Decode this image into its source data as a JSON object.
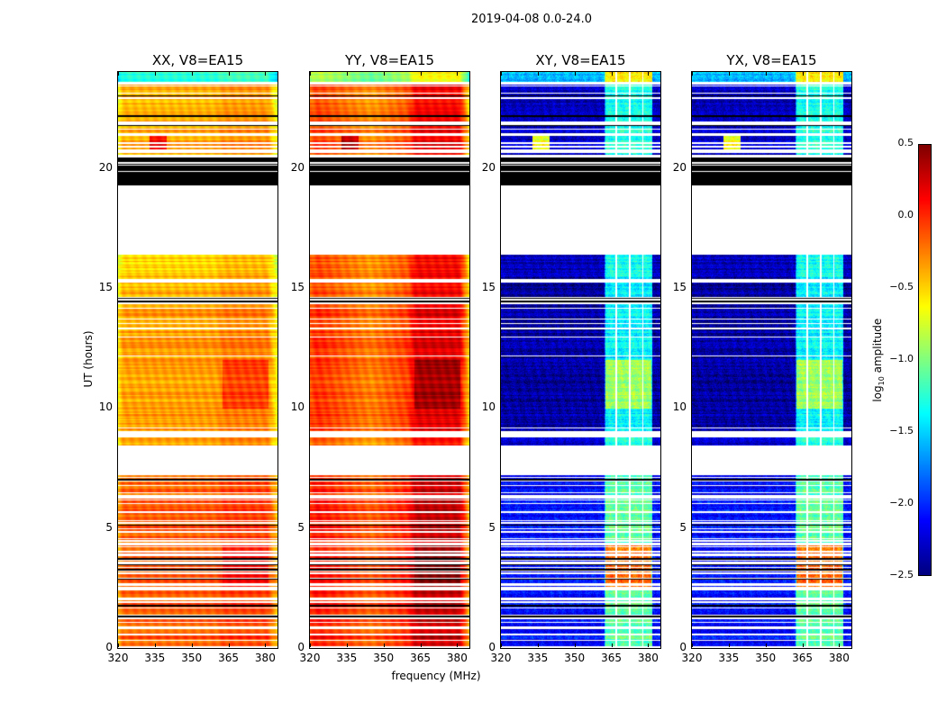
{
  "suptitle": "2019-04-08 0.0-24.0",
  "chart_data": {
    "type": "heatmap",
    "title": "2019-04-08 0.0-24.0",
    "xlabel": "frequency (MHz)",
    "ylabel": "UT (hours)",
    "xlim": [
      320,
      385
    ],
    "ylim": [
      0,
      24
    ],
    "xticks": [
      320,
      335,
      350,
      365,
      380
    ],
    "yticks": [
      0,
      5,
      10,
      15,
      20
    ],
    "colormap": "jet",
    "colorbar": {
      "label_prefix": "log",
      "label_sub": "10",
      "label_suffix": " amplitude",
      "range": [
        -2.5,
        0.5
      ],
      "ticks": [
        "0.5",
        "0.0",
        "−0.5",
        "−1.0",
        "−1.5",
        "−2.0",
        "−2.5"
      ],
      "tick_values": [
        0.5,
        0.0,
        -0.5,
        -1.0,
        -1.5,
        -2.0,
        -2.5
      ]
    },
    "panels": [
      {
        "title": "XX, V8=EA15",
        "kind": "auto",
        "levels": [
          -0.15,
          -0.4,
          -0.35,
          -0.4,
          -0.5,
          -0.4,
          -1.3
        ],
        "profile": [
          [
            320,
            -0.25
          ],
          [
            322,
            0
          ],
          [
            360,
            0.02
          ],
          [
            363,
            0.1
          ],
          [
            381,
            0.1
          ],
          [
            385,
            -0.3
          ]
        ]
      },
      {
        "title": "YY, V8=EA15",
        "kind": "auto",
        "levels": [
          0.05,
          -0.2,
          -0.05,
          -0.1,
          -0.1,
          -0.1,
          -0.9
        ],
        "profile": [
          [
            320,
            -0.05
          ],
          [
            323,
            0.05
          ],
          [
            345,
            -0.2
          ],
          [
            360,
            0
          ],
          [
            363,
            0.25
          ],
          [
            381,
            0.25
          ],
          [
            385,
            -0.45
          ]
        ]
      },
      {
        "title": "XY, V8=EA15",
        "kind": "cross",
        "levels": [
          -2.1,
          -2.3,
          -2.4,
          -2.4,
          -2.3,
          -2.3,
          -1.6
        ],
        "profile": [
          [
            320,
            0
          ],
          [
            362.3,
            0
          ],
          [
            362.5,
            1.0
          ],
          [
            381.5,
            1.0
          ],
          [
            381.8,
            0
          ],
          [
            385,
            0
          ]
        ]
      },
      {
        "title": "YX, V8=EA15",
        "kind": "cross",
        "levels": [
          -2.1,
          -2.3,
          -2.4,
          -2.4,
          -2.3,
          -2.3,
          -1.6
        ],
        "profile": [
          [
            320,
            0
          ],
          [
            362.3,
            0
          ],
          [
            362.5,
            1.0
          ],
          [
            381.5,
            1.0
          ],
          [
            381.8,
            0
          ],
          [
            385,
            0
          ]
        ]
      }
    ],
    "segments": [
      {
        "t0": 0,
        "t1": 7.2,
        "state": "striped",
        "level_index": 0
      },
      {
        "t0": 7.2,
        "t1": 8.45,
        "state": "flagged"
      },
      {
        "t0": 8.45,
        "t1": 8.8,
        "state": "data",
        "level_index": 1
      },
      {
        "t0": 8.8,
        "t1": 9.05,
        "state": "flagged"
      },
      {
        "t0": 9.05,
        "t1": 14.3,
        "state": "lined",
        "level_index": 2
      },
      {
        "t0": 14.3,
        "t1": 15.5,
        "state": "striped",
        "level_index": 3
      },
      {
        "t0": 15.5,
        "t1": 16.4,
        "state": "data",
        "level_index": 4
      },
      {
        "t0": 16.4,
        "t1": 19.3,
        "state": "flagged"
      },
      {
        "t0": 19.3,
        "t1": 20.5,
        "state": "black"
      },
      {
        "t0": 20.5,
        "t1": 23.5,
        "state": "striped",
        "level_index": 5
      },
      {
        "t0": 23.5,
        "t1": 23.6,
        "state": "flagged"
      },
      {
        "t0": 23.6,
        "t1": 24,
        "state": "data",
        "level_index": 6
      }
    ],
    "flagged_channels_cross": [
      [
        366.6,
        367.2
      ],
      [
        372.3,
        372.9
      ],
      [
        377.6,
        378.2
      ]
    ],
    "events": [
      {
        "t0": 2.5,
        "t1": 4.3,
        "f0": 362.5,
        "f1": 381.5,
        "delta_auto": 0.15,
        "delta_cross": 0.9
      },
      {
        "t0": 10.0,
        "t1": 12.0,
        "f0": 362.5,
        "f1": 381.5,
        "delta_auto": 0.2,
        "delta_cross": 0.5
      },
      {
        "t0": 20.8,
        "t1": 21.4,
        "f0": 333,
        "f1": 340,
        "delta_auto": 0.5,
        "delta_cross": 1.6
      }
    ]
  }
}
